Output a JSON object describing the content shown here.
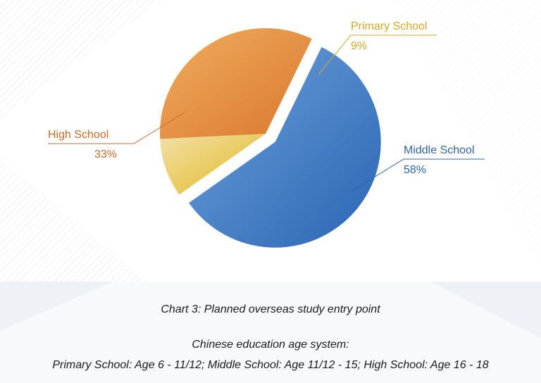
{
  "chart_data": {
    "type": "pie",
    "series": [
      {
        "label": "Middle School",
        "value": 58,
        "value_text": "58%",
        "color": "#3d7fc8",
        "color_light": "#6fa3dc",
        "color_dark": "#2a64b3",
        "exploded": true
      },
      {
        "label": "Primary School",
        "value": 9,
        "value_text": "9%",
        "color": "#e8c23a",
        "color_light": "#f1e0a8",
        "color_dark": "#e3b821",
        "exploded": false
      },
      {
        "label": "High School",
        "value": 33,
        "value_text": "33%",
        "color": "#e58a36",
        "color_light": "#f1ad5e",
        "color_dark": "#d9772f",
        "exploded": false
      }
    ],
    "label_colors": {
      "Middle School": "#2f64a8",
      "Primary School": "#d1a92b",
      "High School": "#cc6a2c"
    },
    "title": "Chart 3: Planned overseas study entry point"
  },
  "caption": {
    "title": "Chart 3: Planned overseas study entry point",
    "subtitle": "Chinese education age system:",
    "ages": "Primary School: Age 6 - 11/12;  Middle School: Age 11/12 - 15;   High School: Age 16 - 18"
  }
}
